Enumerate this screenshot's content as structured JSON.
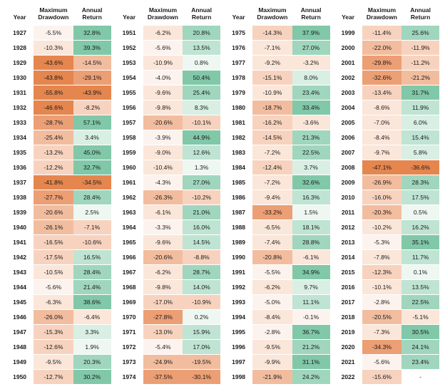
{
  "headers": {
    "year": "Year",
    "drawdown": "Maximum Drawdown",
    "return": "Annual Return"
  },
  "blocks": 4,
  "years_per_block": 24,
  "start_year": 1927,
  "colors": {
    "dd_scale": [
      "#fdf3ee",
      "#fbe6da",
      "#f7d3bf",
      "#f2bd9f",
      "#ec9f74",
      "#e5864f"
    ],
    "ret_pos_scale": [
      "#eef7f2",
      "#d9efe4",
      "#bfe4d3",
      "#a0d6be",
      "#81c8a9"
    ],
    "ret_neg_scale": [
      "#fdf3ee",
      "#fbe6da",
      "#f7d3bf",
      "#f2bd9f",
      "#ec9f74",
      "#e5864f"
    ],
    "header_text": "#1a1a1a",
    "cell_text": "#1a1a1a",
    "background": "#ffffff"
  },
  "fonts": {
    "header_size_pt": 8.5,
    "cell_size_pt": 8.5,
    "header_weight": 700,
    "cell_weight": 500
  },
  "rows": [
    {
      "year": 1927,
      "dd": -5.5,
      "ret": 32.8
    },
    {
      "year": 1928,
      "dd": -10.3,
      "ret": 39.3
    },
    {
      "year": 1929,
      "dd": -43.6,
      "ret": -14.5
    },
    {
      "year": 1930,
      "dd": -43.8,
      "ret": -29.1
    },
    {
      "year": 1931,
      "dd": -55.8,
      "ret": -43.9
    },
    {
      "year": 1932,
      "dd": -46.6,
      "ret": -8.2
    },
    {
      "year": 1933,
      "dd": -28.7,
      "ret": 57.1
    },
    {
      "year": 1934,
      "dd": -25.4,
      "ret": 3.4
    },
    {
      "year": 1935,
      "dd": -13.2,
      "ret": 45.0
    },
    {
      "year": 1936,
      "dd": -12.2,
      "ret": 32.7
    },
    {
      "year": 1937,
      "dd": -41.8,
      "ret": -34.5
    },
    {
      "year": 1938,
      "dd": -27.7,
      "ret": 28.4
    },
    {
      "year": 1939,
      "dd": -20.6,
      "ret": 2.5
    },
    {
      "year": 1940,
      "dd": -26.1,
      "ret": -7.1
    },
    {
      "year": 1941,
      "dd": -16.5,
      "ret": -10.6
    },
    {
      "year": 1942,
      "dd": -17.5,
      "ret": 16.5
    },
    {
      "year": 1943,
      "dd": -10.5,
      "ret": 28.4
    },
    {
      "year": 1944,
      "dd": -5.6,
      "ret": 21.4
    },
    {
      "year": 1945,
      "dd": -6.3,
      "ret": 38.6
    },
    {
      "year": 1946,
      "dd": -26.0,
      "ret": -6.4
    },
    {
      "year": 1947,
      "dd": -15.3,
      "ret": 3.3
    },
    {
      "year": 1948,
      "dd": -12.6,
      "ret": 1.9
    },
    {
      "year": 1949,
      "dd": -9.5,
      "ret": 20.3
    },
    {
      "year": 1950,
      "dd": -12.7,
      "ret": 30.2
    },
    {
      "year": 1951,
      "dd": -6.2,
      "ret": 20.8
    },
    {
      "year": 1952,
      "dd": -5.6,
      "ret": 13.5
    },
    {
      "year": 1953,
      "dd": -10.9,
      "ret": 0.8
    },
    {
      "year": 1954,
      "dd": -4.0,
      "ret": 50.4
    },
    {
      "year": 1955,
      "dd": -9.6,
      "ret": 25.4
    },
    {
      "year": 1956,
      "dd": -9.8,
      "ret": 8.3
    },
    {
      "year": 1957,
      "dd": -20.6,
      "ret": -10.1
    },
    {
      "year": 1958,
      "dd": -3.9,
      "ret": 44.9
    },
    {
      "year": 1959,
      "dd": -9.0,
      "ret": 12.6
    },
    {
      "year": 1960,
      "dd": -10.4,
      "ret": 1.3
    },
    {
      "year": 1961,
      "dd": -4.3,
      "ret": 27.0
    },
    {
      "year": 1962,
      "dd": -26.3,
      "ret": -10.2
    },
    {
      "year": 1963,
      "dd": -6.1,
      "ret": 21.0
    },
    {
      "year": 1964,
      "dd": -3.3,
      "ret": 16.0
    },
    {
      "year": 1965,
      "dd": -9.6,
      "ret": 14.5
    },
    {
      "year": 1966,
      "dd": -20.6,
      "ret": -8.8
    },
    {
      "year": 1967,
      "dd": -6.2,
      "ret": 28.7
    },
    {
      "year": 1968,
      "dd": -9.8,
      "ret": 14.0
    },
    {
      "year": 1969,
      "dd": -17.0,
      "ret": -10.9
    },
    {
      "year": 1970,
      "dd": -27.8,
      "ret": 0.2
    },
    {
      "year": 1971,
      "dd": -13.0,
      "ret": 15.9
    },
    {
      "year": 1972,
      "dd": -5.4,
      "ret": 17.0
    },
    {
      "year": 1973,
      "dd": -24.9,
      "ret": -19.5
    },
    {
      "year": 1974,
      "dd": -37.5,
      "ret": -30.1
    },
    {
      "year": 1975,
      "dd": -14.3,
      "ret": 37.9
    },
    {
      "year": 1976,
      "dd": -7.1,
      "ret": 27.0
    },
    {
      "year": 1977,
      "dd": -9.2,
      "ret": -3.2
    },
    {
      "year": 1978,
      "dd": -15.1,
      "ret": 8.0
    },
    {
      "year": 1979,
      "dd": -10.9,
      "ret": 23.4
    },
    {
      "year": 1980,
      "dd": -18.7,
      "ret": 33.4
    },
    {
      "year": 1981,
      "dd": -16.2,
      "ret": -3.6
    },
    {
      "year": 1982,
      "dd": -14.5,
      "ret": 21.3
    },
    {
      "year": 1983,
      "dd": -7.2,
      "ret": 22.5
    },
    {
      "year": 1984,
      "dd": -12.4,
      "ret": 3.7
    },
    {
      "year": 1985,
      "dd": -7.2,
      "ret": 32.6
    },
    {
      "year": 1986,
      "dd": -9.4,
      "ret": 16.3
    },
    {
      "year": 1987,
      "dd": -33.2,
      "ret": 1.5
    },
    {
      "year": 1988,
      "dd": -6.5,
      "ret": 18.1
    },
    {
      "year": 1989,
      "dd": -7.4,
      "ret": 28.8
    },
    {
      "year": 1990,
      "dd": -20.8,
      "ret": -6.1
    },
    {
      "year": 1991,
      "dd": -5.5,
      "ret": 34.9
    },
    {
      "year": 1992,
      "dd": -6.2,
      "ret": 9.7
    },
    {
      "year": 1993,
      "dd": -5.0,
      "ret": 11.1
    },
    {
      "year": 1994,
      "dd": -8.4,
      "ret": -0.1
    },
    {
      "year": 1995,
      "dd": -2.8,
      "ret": 36.7
    },
    {
      "year": 1996,
      "dd": -9.5,
      "ret": 21.2
    },
    {
      "year": 1997,
      "dd": -9.9,
      "ret": 31.1
    },
    {
      "year": 1998,
      "dd": -21.9,
      "ret": 24.2
    },
    {
      "year": 1999,
      "dd": -11.4,
      "ret": 25.6
    },
    {
      "year": 2000,
      "dd": -22.0,
      "ret": -11.9
    },
    {
      "year": 2001,
      "dd": -29.8,
      "ret": -11.2
    },
    {
      "year": 2002,
      "dd": -32.6,
      "ret": -21.2
    },
    {
      "year": 2003,
      "dd": -13.4,
      "ret": 31.7
    },
    {
      "year": 2004,
      "dd": -8.6,
      "ret": 11.9
    },
    {
      "year": 2005,
      "dd": -7.0,
      "ret": 6.0
    },
    {
      "year": 2006,
      "dd": -8.4,
      "ret": 15.4
    },
    {
      "year": 2007,
      "dd": -9.7,
      "ret": 5.8
    },
    {
      "year": 2008,
      "dd": -47.1,
      "ret": -36.6
    },
    {
      "year": 2009,
      "dd": -26.9,
      "ret": 28.3
    },
    {
      "year": 2010,
      "dd": -16.0,
      "ret": 17.5
    },
    {
      "year": 2011,
      "dd": -20.3,
      "ret": 0.5
    },
    {
      "year": 2012,
      "dd": -10.2,
      "ret": 16.2
    },
    {
      "year": 2013,
      "dd": -5.3,
      "ret": 35.1
    },
    {
      "year": 2014,
      "dd": -7.8,
      "ret": 11.7
    },
    {
      "year": 2015,
      "dd": -12.3,
      "ret": 0.1
    },
    {
      "year": 2016,
      "dd": -10.1,
      "ret": 13.5
    },
    {
      "year": 2017,
      "dd": -2.8,
      "ret": 22.5
    },
    {
      "year": 2018,
      "dd": -20.5,
      "ret": -5.1
    },
    {
      "year": 2019,
      "dd": -7.3,
      "ret": 30.5
    },
    {
      "year": 2020,
      "dd": -34.3,
      "ret": 24.1
    },
    {
      "year": 2021,
      "dd": -5.6,
      "ret": 23.4
    },
    {
      "year": 2022,
      "dd": -15.6,
      "ret": null
    }
  ]
}
